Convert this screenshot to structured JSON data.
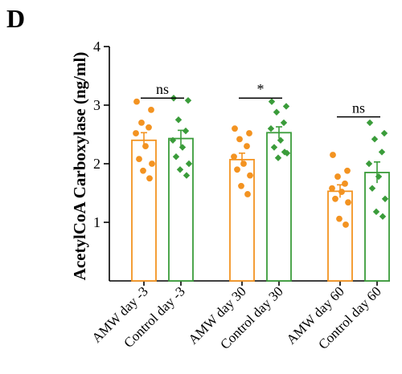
{
  "panel_label": "D",
  "chart_data": {
    "type": "bar",
    "title": "",
    "xlabel": "",
    "ylabel": "AcetylCoA Carboxylase (ng/ml)",
    "ylim": [
      0,
      4
    ],
    "yticks": [
      1,
      2,
      3,
      4
    ],
    "grid": false,
    "categories": [
      "AMW day -3",
      "Control day -3",
      "AMW day 30",
      "Control day 30",
      "AMW day 60",
      "Control day 60"
    ],
    "colors": [
      "#F39321",
      "#3A9C3A",
      "#F39321",
      "#3A9C3A",
      "#F39321",
      "#3A9C3A"
    ],
    "marker_shapes": [
      "circle",
      "diamond",
      "circle",
      "diamond",
      "circle",
      "diamond"
    ],
    "bar_fill": "#ffffff",
    "values": [
      2.4,
      2.43,
      2.07,
      2.53,
      1.53,
      1.85
    ],
    "sem": [
      0.13,
      0.14,
      0.11,
      0.1,
      0.11,
      0.18
    ],
    "points": [
      [
        3.06,
        2.92,
        2.7,
        2.62,
        2.52,
        2.3,
        2.08,
        2.0,
        1.88,
        1.75
      ],
      [
        3.12,
        3.08,
        2.75,
        2.56,
        2.4,
        2.28,
        2.12,
        2.0,
        1.9,
        1.8
      ],
      [
        2.6,
        2.52,
        2.42,
        2.3,
        2.12,
        2.0,
        1.9,
        1.8,
        1.62,
        1.48
      ],
      [
        3.06,
        2.98,
        2.88,
        2.7,
        2.6,
        2.4,
        2.28,
        2.18,
        2.1,
        2.2
      ],
      [
        2.15,
        1.88,
        1.78,
        1.66,
        1.58,
        1.52,
        1.4,
        1.34,
        1.06,
        0.96
      ],
      [
        2.7,
        2.52,
        2.42,
        2.2,
        2.0,
        1.78,
        1.58,
        1.4,
        1.18,
        1.1
      ]
    ],
    "comparisons": [
      {
        "pair": [
          0,
          1
        ],
        "label": "ns",
        "y": 3.12
      },
      {
        "pair": [
          2,
          3
        ],
        "label": "*",
        "y": 3.12
      },
      {
        "pair": [
          4,
          5
        ],
        "label": "ns",
        "y": 2.8
      }
    ]
  }
}
